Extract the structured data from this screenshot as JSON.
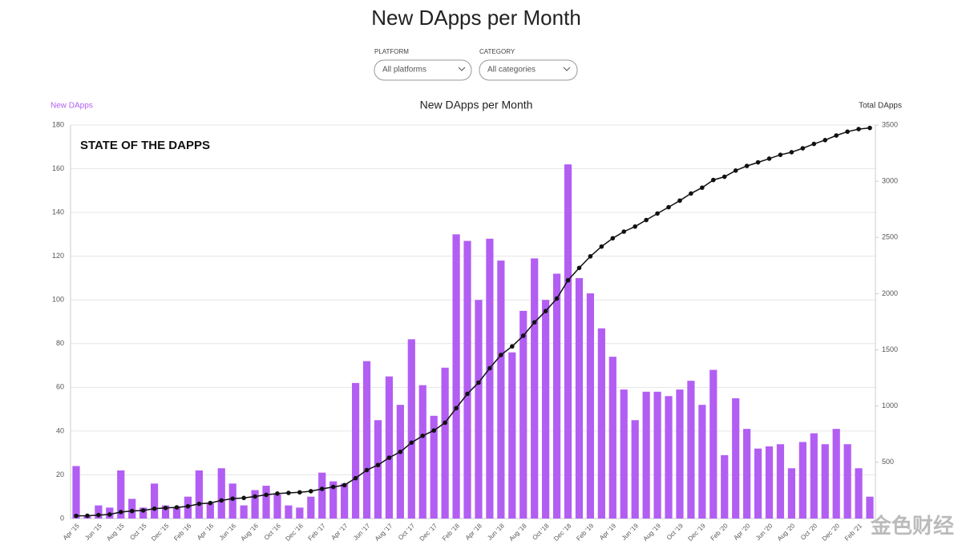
{
  "header": {
    "title": "New DApps per Month"
  },
  "filters": [
    {
      "label": "PLATFORM",
      "value": "All platforms"
    },
    {
      "label": "CATEGORY",
      "value": "All categories"
    }
  ],
  "logo": "STATE OF THE DAPPS",
  "watermark": "金色财经",
  "chart_data": {
    "type": "bar",
    "title": "New DApps per Month",
    "y_label": "New DApps",
    "y2_label": "Total DApps",
    "categories": [
      "Apr '15",
      null,
      "Jun '15",
      null,
      "Aug '15",
      null,
      "Oct '15",
      null,
      "Dec '15",
      null,
      "Feb '16",
      null,
      "Apr '16",
      null,
      "Jun '16",
      null,
      "Aug '16",
      null,
      "Oct '16",
      null,
      "Dec '16",
      null,
      "Feb '17",
      null,
      "Apr '17",
      null,
      "Jun '17",
      null,
      "Aug '17",
      null,
      "Oct '17",
      null,
      "Dec '17",
      null,
      "Feb '18",
      null,
      "Apr '18",
      null,
      "Jun '18",
      null,
      "Aug '18",
      null,
      "Oct '18",
      null,
      "Dec '18",
      null,
      "Feb '19",
      null,
      "Apr '19",
      null,
      "Jun '19",
      null,
      "Aug '19",
      null,
      "Oct '19",
      null,
      "Dec '19",
      null,
      "Feb '20",
      null,
      "Apr '20",
      null,
      "Jun '20",
      null,
      "Aug '20",
      null,
      "Oct '20",
      null,
      "Dec '20",
      null,
      "Feb '21",
      null
    ],
    "series": [
      {
        "name": "New DApps",
        "color": "#b25ef3",
        "type": "bar",
        "values": [
          24,
          1,
          6,
          5,
          22,
          9,
          5,
          16,
          6,
          5,
          10,
          22,
          7,
          23,
          16,
          6,
          13,
          15,
          11,
          6,
          5,
          10,
          21,
          17,
          16,
          62,
          72,
          45,
          65,
          52,
          82,
          61,
          47,
          69,
          130,
          127,
          100,
          128,
          118,
          76,
          95,
          119,
          100,
          112,
          162,
          110,
          103,
          87,
          74,
          59,
          45,
          58,
          58,
          56,
          59,
          63,
          52,
          68,
          29,
          55,
          41,
          32,
          33,
          34,
          23,
          35,
          39,
          34,
          41,
          34,
          23,
          10
        ]
      },
      {
        "name": "Total DApps",
        "color": "#111111",
        "type": "line",
        "axis": "y2",
        "values": [
          24,
          25,
          31,
          36,
          58,
          67,
          72,
          88,
          94,
          99,
          109,
          131,
          138,
          161,
          177,
          183,
          196,
          211,
          222,
          228,
          233,
          243,
          264,
          281,
          297,
          359,
          431,
          476,
          541,
          593,
          675,
          736,
          783,
          852,
          982,
          1109,
          1209,
          1337,
          1455,
          1531,
          1626,
          1745,
          1845,
          1957,
          2119,
          2229,
          2332,
          2419,
          2493,
          2552,
          2597,
          2655,
          2713,
          2769,
          2828,
          2891,
          2943,
          3011,
          3040,
          3095,
          3136,
          3168,
          3201,
          3235,
          3258,
          3293,
          3332,
          3366,
          3407,
          3441,
          3464,
          3474
        ]
      }
    ],
    "ylim": [
      0,
      180
    ],
    "yticks": [
      0,
      20,
      40,
      60,
      80,
      100,
      120,
      140,
      160,
      180
    ],
    "y2lim": [
      0,
      3500
    ],
    "y2ticks": [
      500,
      1000,
      1500,
      2000,
      2500,
      3000,
      3500
    ],
    "grid": true
  }
}
